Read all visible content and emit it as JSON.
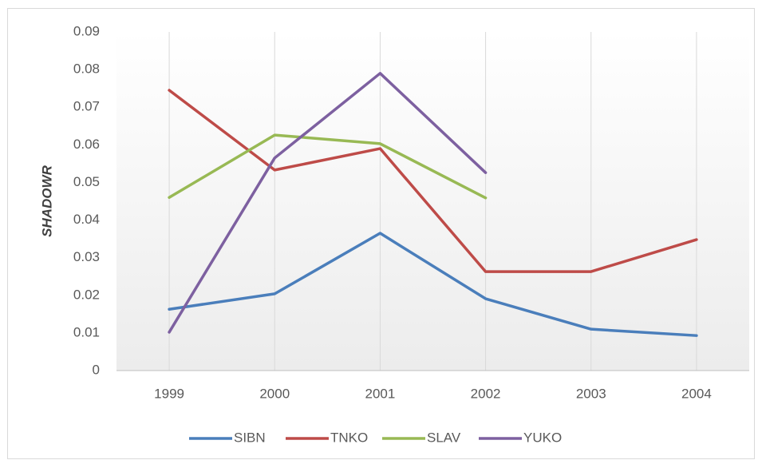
{
  "chart_data": {
    "type": "line",
    "y_label": "SHADOWR",
    "categories": [
      "1999",
      "2000",
      "2001",
      "2002",
      "2003",
      "2004"
    ],
    "series": [
      {
        "name": "SIBN",
        "color": "#4a7ebb",
        "values": [
          0.0163,
          0.0204,
          0.0365,
          0.0191,
          0.011,
          0.0093
        ]
      },
      {
        "name": "TNKO",
        "color": "#be4b48",
        "values": [
          0.0745,
          0.0533,
          0.059,
          0.0263,
          0.0263,
          0.0348
        ]
      },
      {
        "name": "SLAV",
        "color": "#98b954",
        "values": [
          0.046,
          0.0626,
          0.0603,
          0.0459,
          null,
          null
        ]
      },
      {
        "name": "YUKO",
        "color": "#7d60a0",
        "values": [
          0.0102,
          0.0565,
          0.079,
          0.0526,
          null,
          null
        ]
      }
    ],
    "ylim": [
      0,
      0.09
    ],
    "yticks": [
      0,
      0.01,
      0.02,
      0.03,
      0.04,
      0.05,
      0.06,
      0.07,
      0.08,
      0.09
    ],
    "grid": true,
    "legend": "bottom"
  }
}
